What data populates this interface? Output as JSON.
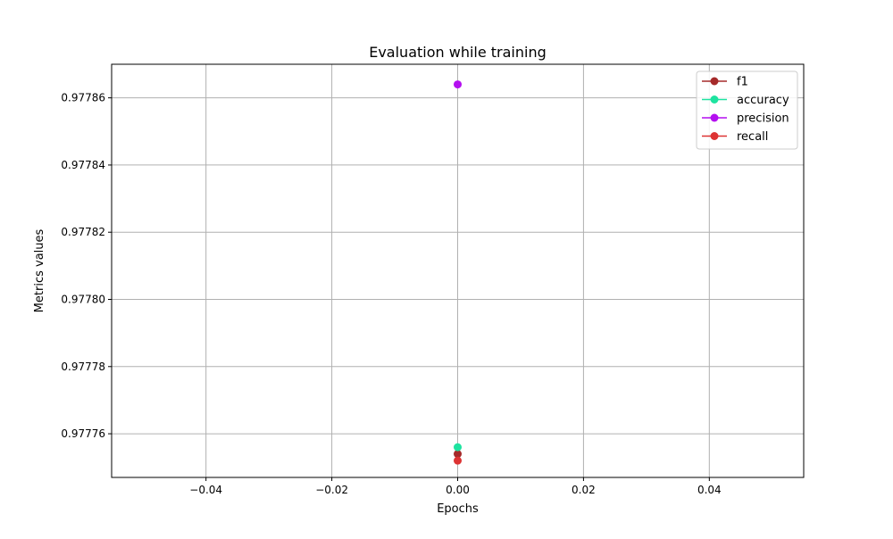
{
  "chart_data": {
    "type": "scatter",
    "title": "Evaluation while training",
    "xlabel": "Epochs",
    "ylabel": "Metrics values",
    "xlim": [
      -0.055,
      0.055
    ],
    "ylim": [
      0.977747,
      0.97787
    ],
    "xticks": [
      -0.04,
      -0.02,
      0.0,
      0.02,
      0.04
    ],
    "xtick_labels": [
      "−0.04",
      "−0.02",
      "0.00",
      "0.02",
      "0.04"
    ],
    "yticks": [
      0.97776,
      0.97778,
      0.9778,
      0.97782,
      0.97784,
      0.97786
    ],
    "ytick_labels": [
      "0.97776",
      "0.97778",
      "0.97780",
      "0.97782",
      "0.97784",
      "0.97786"
    ],
    "grid": true,
    "legend_position": "top-right",
    "series": [
      {
        "name": "f1",
        "color": "#a52a2a",
        "x": [
          0.0
        ],
        "y": [
          0.977754
        ]
      },
      {
        "name": "accuracy",
        "color": "#1ee3a0",
        "x": [
          0.0
        ],
        "y": [
          0.977756
        ]
      },
      {
        "name": "precision",
        "color": "#b40ff0",
        "x": [
          0.0
        ],
        "y": [
          0.977864
        ]
      },
      {
        "name": "recall",
        "color": "#dd3333",
        "x": [
          0.0
        ],
        "y": [
          0.977752
        ]
      }
    ]
  }
}
